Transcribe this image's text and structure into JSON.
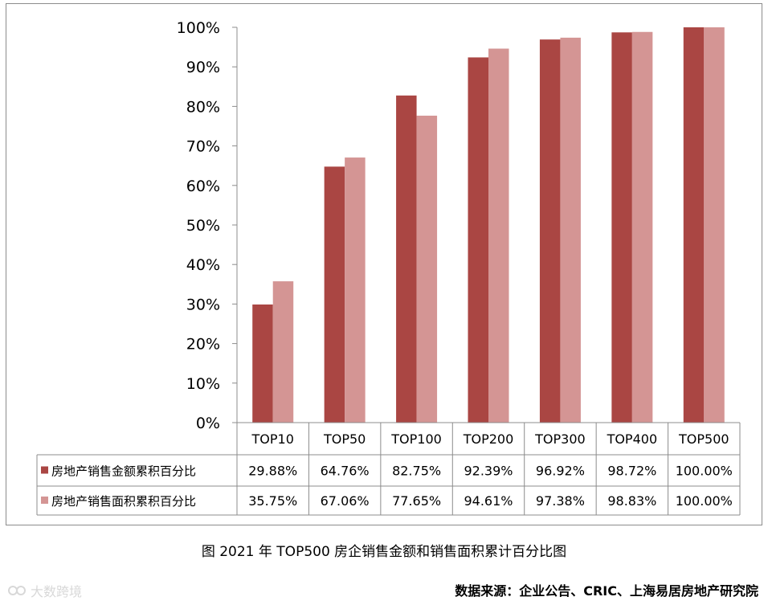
{
  "chart_data": {
    "type": "bar",
    "title": "",
    "xlabel": "",
    "ylabel": "",
    "ylim": [
      0,
      100
    ],
    "y_ticks": [
      "0%",
      "10%",
      "20%",
      "30%",
      "40%",
      "50%",
      "60%",
      "70%",
      "80%",
      "90%",
      "100%"
    ],
    "categories": [
      "TOP10",
      "TOP50",
      "TOP100",
      "TOP200",
      "TOP300",
      "TOP400",
      "TOP500"
    ],
    "series": [
      {
        "name": "房地产销售金额累积百分比",
        "color": "#aa4643",
        "values": [
          29.88,
          64.76,
          82.75,
          92.39,
          96.92,
          98.72,
          100.0
        ],
        "labels": [
          "29.88%",
          "64.76%",
          "82.75%",
          "92.39%",
          "96.92%",
          "98.72%",
          "100.00%"
        ]
      },
      {
        "name": "房地产销售面积累积百分比",
        "color": "#d49594",
        "values": [
          35.75,
          67.06,
          77.65,
          94.61,
          97.38,
          98.83,
          100.0
        ],
        "labels": [
          "35.75%",
          "67.06%",
          "77.65%",
          "94.61%",
          "97.38%",
          "98.83%",
          "100.00%"
        ]
      }
    ],
    "grid": false,
    "legend": "data-table"
  },
  "caption": "图 2021 年 TOP500 房企销售金额和销售面积累计百分比图",
  "source": "数据来源：企业公告、CRIC、上海易居房地产研究院",
  "watermark": "大数跨境"
}
